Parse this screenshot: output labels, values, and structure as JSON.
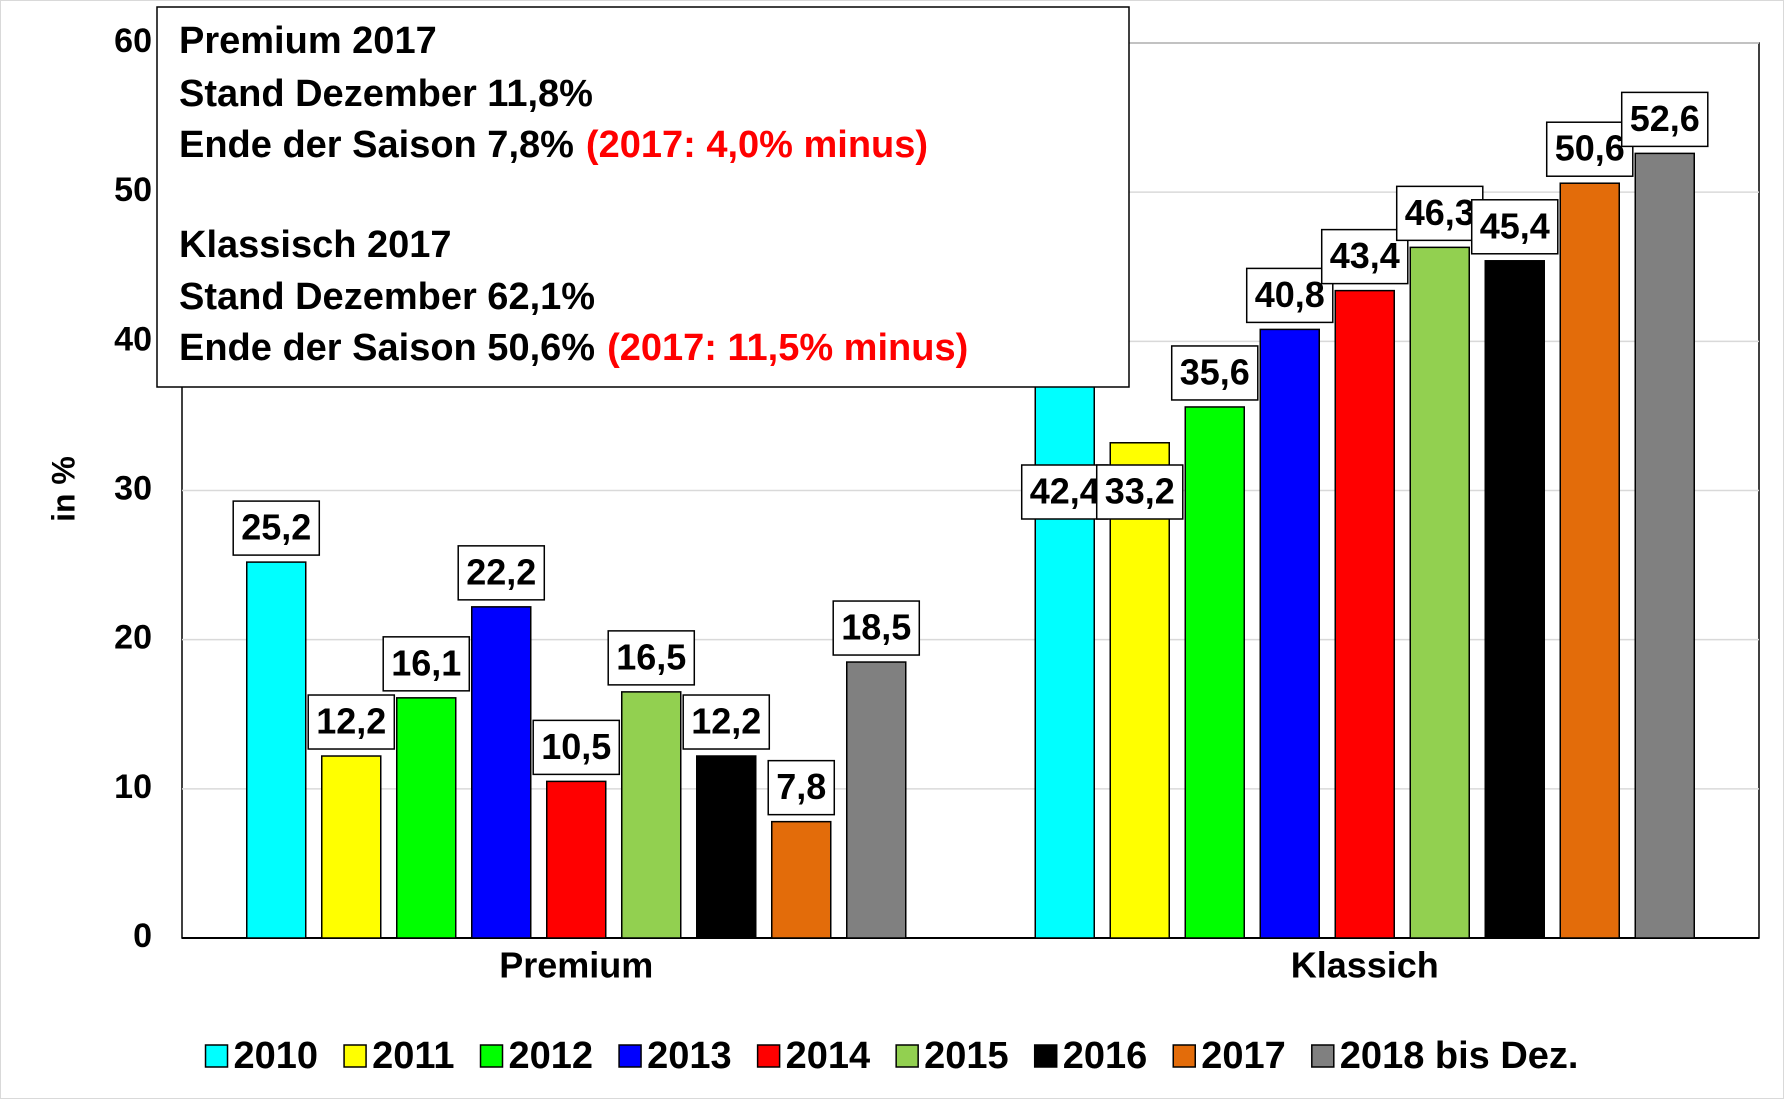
{
  "chart_data": {
    "type": "bar",
    "y_label": "in %",
    "categories": [
      "Premium",
      "Klassich"
    ],
    "ylim": [
      0,
      60
    ],
    "yticks": [
      0,
      10,
      20,
      30,
      40,
      50,
      60
    ],
    "grid": true,
    "legend": "bottom",
    "series": [
      {
        "name": "2010",
        "color": "#00ffff",
        "values": [
          25.2,
          42.4
        ],
        "value_labels": [
          "25,2",
          "42,4"
        ]
      },
      {
        "name": "2011",
        "color": "#ffff00",
        "values": [
          12.2,
          33.2
        ],
        "value_labels": [
          "12,2",
          "33,2"
        ]
      },
      {
        "name": "2012",
        "color": "#00ff00",
        "values": [
          16.1,
          35.6
        ],
        "value_labels": [
          "16,1",
          "35,6"
        ]
      },
      {
        "name": "2013",
        "color": "#0000ff",
        "values": [
          22.2,
          40.8
        ],
        "value_labels": [
          "22,2",
          "40,8"
        ]
      },
      {
        "name": "2014",
        "color": "#ff0000",
        "values": [
          10.5,
          43.4
        ],
        "value_labels": [
          "10,5",
          "43,4"
        ]
      },
      {
        "name": "2015",
        "color": "#92d050",
        "values": [
          16.5,
          46.3
        ],
        "value_labels": [
          "16,5",
          "46,3"
        ]
      },
      {
        "name": "2016",
        "color": "#000000",
        "values": [
          12.2,
          45.4
        ],
        "value_labels": [
          "12,2",
          "45,4"
        ]
      },
      {
        "name": "2017",
        "color": "#e36c0a",
        "values": [
          7.8,
          50.6
        ],
        "value_labels": [
          "7,8",
          "50,6"
        ]
      },
      {
        "name": "2018 bis Dez.",
        "color": "#808080",
        "values": [
          18.5,
          52.6
        ],
        "value_labels": [
          "18,5",
          "52,6"
        ]
      }
    ],
    "annotation": {
      "highlight_color": "#ff0000",
      "lines": [
        {
          "text": "Premium 2017"
        },
        {
          "text": "Stand Dezember 11,8%"
        },
        {
          "text": "Ende der Saison 7,8%",
          "highlight": "(2017: 4,0% minus)"
        },
        {
          "text": "Klassisch 2017"
        },
        {
          "text": "Stand Dezember 62,1%"
        },
        {
          "text": "Ende der Saison 50,6%",
          "highlight": "(2017: 11,5% minus)"
        }
      ]
    }
  }
}
